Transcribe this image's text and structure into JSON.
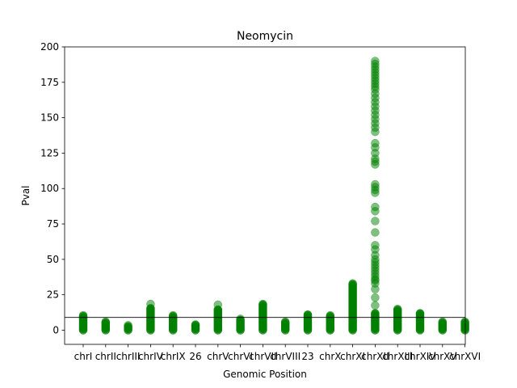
{
  "chart_data": {
    "type": "scatter",
    "title": "Neomycin",
    "xlabel": "Genomic Position",
    "ylabel": "Pval",
    "ylim": [
      -10,
      200
    ],
    "yticks": [
      0,
      25,
      50,
      75,
      100,
      125,
      150,
      175,
      200
    ],
    "threshold": 9,
    "point_color": "#008000",
    "point_alpha": 0.5,
    "categories": [
      "chrI",
      "chrII",
      "chrIII",
      "chrIV",
      "chrIX",
      "26",
      "chrV",
      "chrVI",
      "chrVII",
      "chrVIII",
      "23",
      "chrX",
      "chrXI",
      "chrXII",
      "chrXIII",
      "chrXIV",
      "chrXV",
      "chrXVI"
    ],
    "series": [
      {
        "category": "chrI",
        "max": 10.5,
        "extra": []
      },
      {
        "category": "chrII",
        "max": 6,
        "extra": []
      },
      {
        "category": "chrIII",
        "max": 3.5,
        "extra": []
      },
      {
        "category": "chrIV",
        "max": 15.5,
        "extra": [
          18.5
        ]
      },
      {
        "category": "chrIX",
        "max": 10.5,
        "extra": []
      },
      {
        "category": "26",
        "max": 4,
        "extra": []
      },
      {
        "category": "chrV",
        "max": 14.5,
        "extra": [
          18
        ]
      },
      {
        "category": "chrVI",
        "max": 8,
        "extra": []
      },
      {
        "category": "chrVII",
        "max": 18.5,
        "extra": []
      },
      {
        "category": "chrVIII",
        "max": 6,
        "extra": []
      },
      {
        "category": "23",
        "max": 11,
        "extra": []
      },
      {
        "category": "chrX",
        "max": 10.5,
        "extra": []
      },
      {
        "category": "chrXI",
        "max": 33,
        "extra": []
      },
      {
        "category": "chrXII",
        "max": 12,
        "extra": [
          17.5,
          23,
          29,
          33,
          35,
          36,
          38,
          40,
          42,
          44,
          46,
          48,
          50,
          53,
          57,
          60,
          69,
          77,
          84,
          87,
          97,
          99,
          101,
          103,
          117,
          119,
          121,
          125,
          129,
          132,
          140,
          143,
          146,
          149,
          152,
          155,
          158,
          161,
          164,
          167,
          170,
          172,
          174,
          176,
          178,
          180,
          182,
          184,
          186,
          188,
          190
        ]
      },
      {
        "category": "chrXIII",
        "max": 15,
        "extra": []
      },
      {
        "category": "chrXIV",
        "max": 12,
        "extra": []
      },
      {
        "category": "chrXV",
        "max": 6,
        "extra": []
      },
      {
        "category": "chrXVI",
        "max": 6,
        "extra": []
      }
    ]
  }
}
